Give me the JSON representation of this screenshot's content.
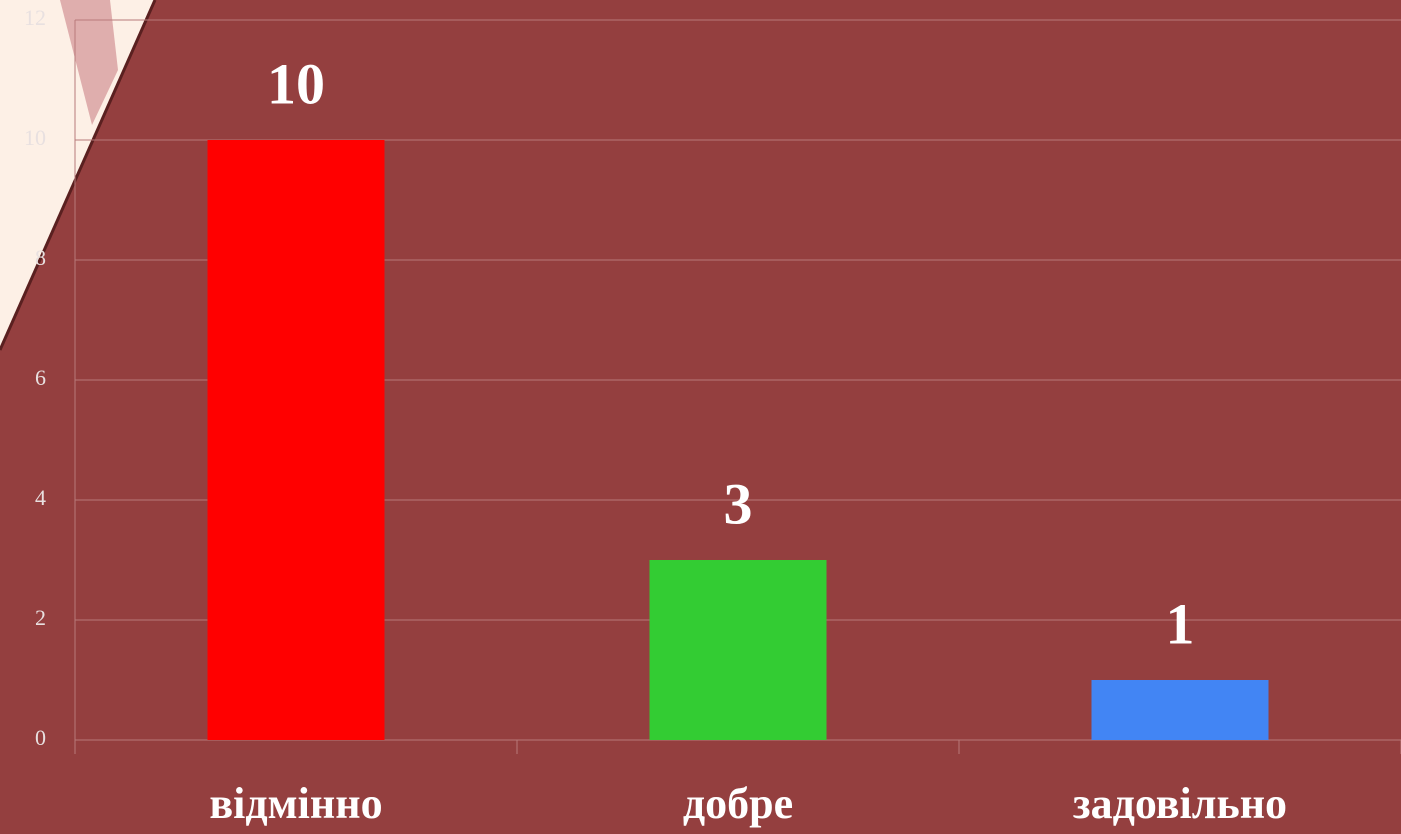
{
  "chart_data": {
    "type": "bar",
    "categories": [
      "відмінно",
      "добре",
      "задовільно"
    ],
    "values": [
      10,
      3,
      1
    ],
    "colors": [
      "#ff0000",
      "#33cc33",
      "#4285f4"
    ],
    "ylim": [
      0,
      12
    ],
    "yticks": [
      0,
      2,
      4,
      6,
      8,
      10,
      12
    ],
    "grid": true
  }
}
